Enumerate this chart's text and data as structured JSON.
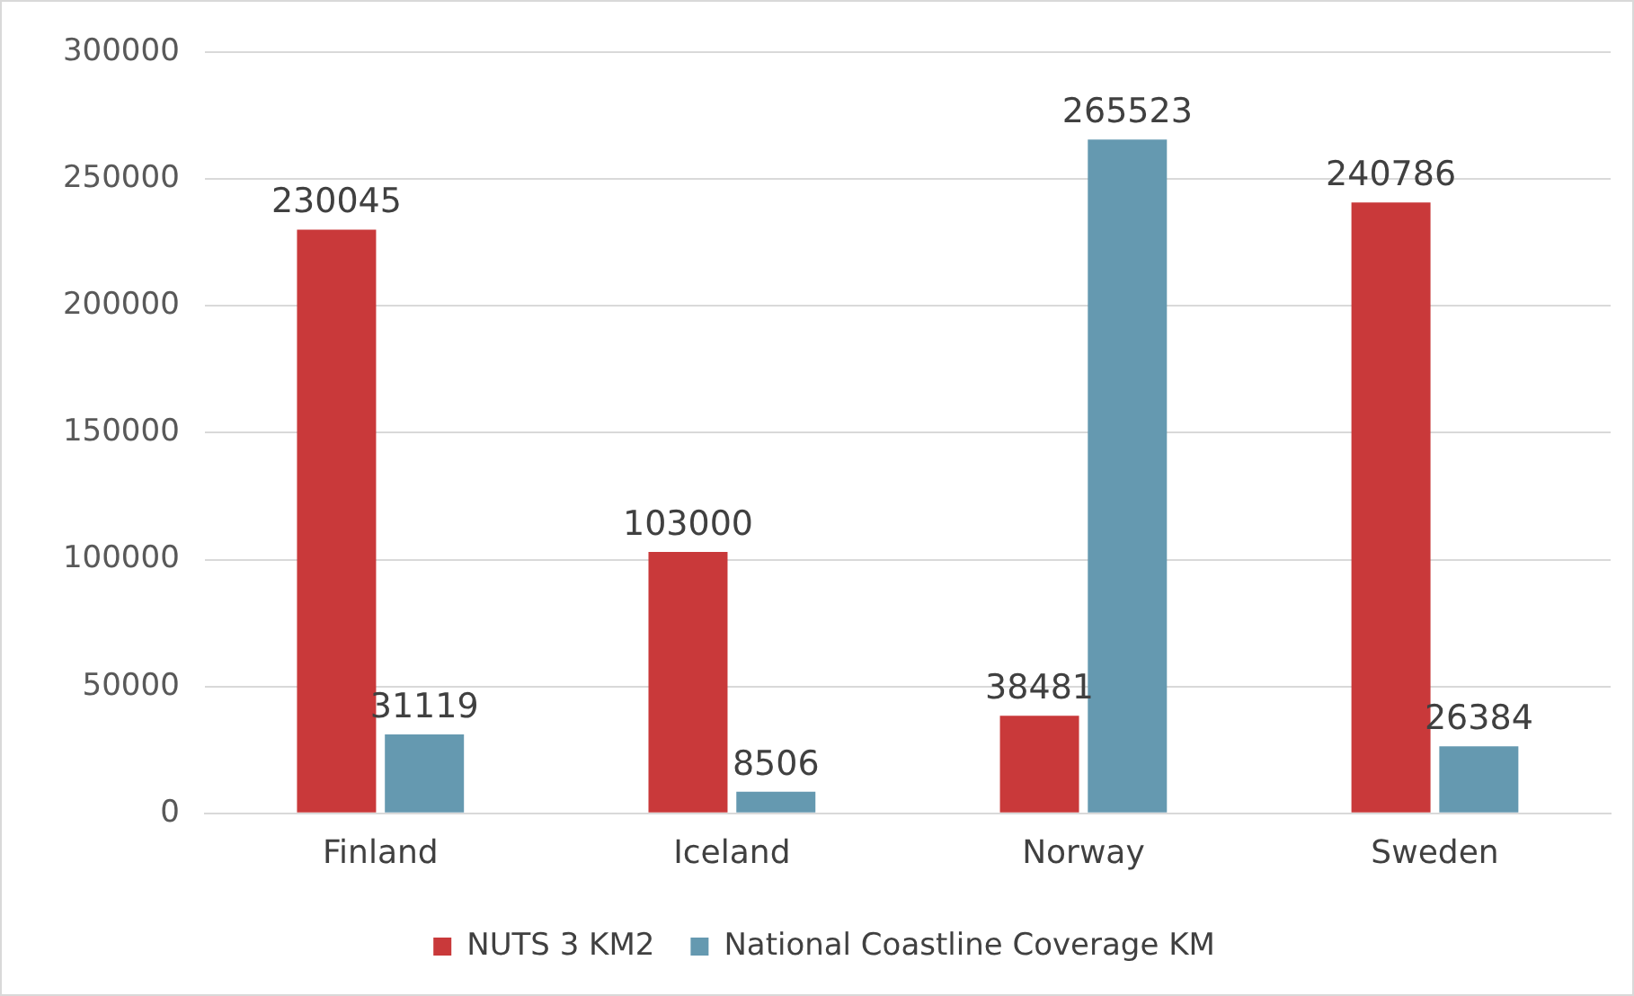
{
  "chart_data": {
    "type": "bar",
    "categories": [
      "Finland",
      "Iceland",
      "Norway",
      "Sweden"
    ],
    "series": [
      {
        "name": "NUTS 3 KM2",
        "color": "#c9393a",
        "values": [
          230045,
          103000,
          38481,
          240786
        ]
      },
      {
        "name": "National Coastline Coverage KM",
        "color": "#6599b0",
        "values": [
          31119,
          8506,
          265523,
          26384
        ]
      }
    ],
    "ylim": [
      0,
      300000
    ],
    "yticks": [
      0,
      50000,
      100000,
      150000,
      200000,
      250000,
      300000
    ],
    "grid": "y",
    "legend": "bottom",
    "data_labels": true
  }
}
